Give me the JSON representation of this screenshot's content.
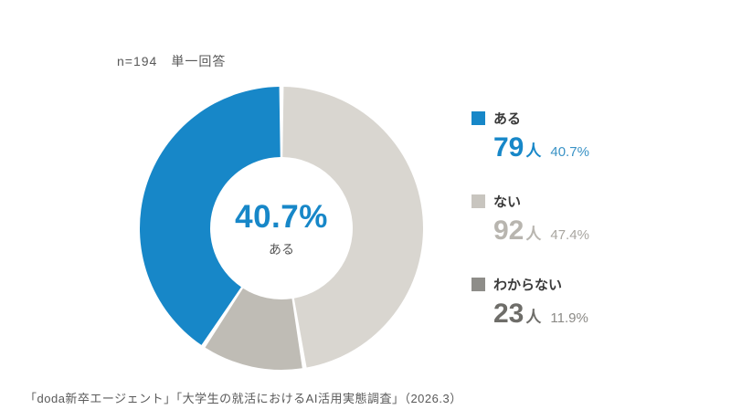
{
  "meta": {
    "note": "n=194　単一回答",
    "source": "「doda新卒エージェント」「大学生の就活におけるAI活用実態調査」（2026.3）"
  },
  "chart_data": {
    "type": "pie",
    "donut": true,
    "title": "",
    "legend_position": "right",
    "start_angle_deg": 0,
    "clockwise_order": [
      1,
      2,
      0
    ],
    "gap_deg": 1.8,
    "items": [
      {
        "label": "ある",
        "count": 79,
        "unit": "人",
        "percent": 40.7,
        "percent_text": "40.7%",
        "color": "#1787c8",
        "swatch_color": "#1787c8",
        "number_color": "#1787c8",
        "percent_color": "#3a93c6"
      },
      {
        "label": "ない",
        "count": 92,
        "unit": "人",
        "percent": 47.4,
        "percent_text": "47.4%",
        "color": "#d9d6d0",
        "swatch_color": "#c8c5bf",
        "number_color": "#b8b5af",
        "percent_color": "#a9a6a0"
      },
      {
        "label": "わからない",
        "count": 23,
        "unit": "人",
        "percent": 11.9,
        "percent_text": "11.9%",
        "color": "#bfbcb5",
        "swatch_color": "#8e8d89",
        "number_color": "#6e6d69",
        "percent_color": "#8b8a86"
      }
    ],
    "center": {
      "percent": "40.7%",
      "label": "ある",
      "color": "#1787c8"
    }
  }
}
